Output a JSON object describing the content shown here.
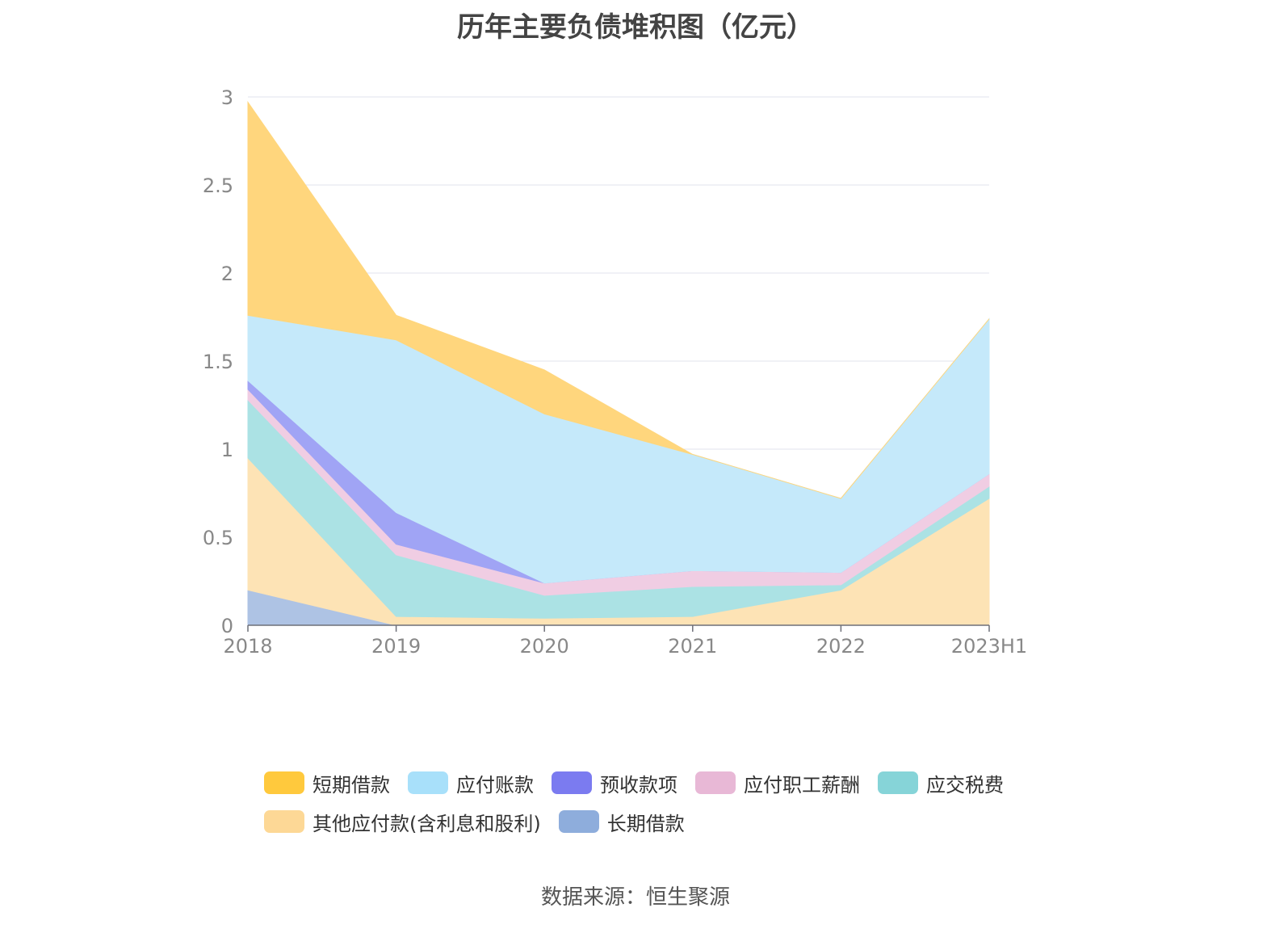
{
  "source_text": "数据来源：恒生聚源",
  "colors": {
    "grid": "#e0e3ee",
    "axis": "#6e7079",
    "tick_label": "#888888"
  },
  "chart_data": {
    "type": "area",
    "stacked": true,
    "title": "历年主要负债堆积图（亿元）",
    "xlabel": "",
    "ylabel": "",
    "categories": [
      "2018",
      "2019",
      "2020",
      "2021",
      "2022",
      "2023H1"
    ],
    "ylim": [
      0,
      3
    ],
    "yticks": [
      "0",
      "0.5",
      "1",
      "1.5",
      "2",
      "2.5",
      "3"
    ],
    "ytick_values": [
      0,
      0.5,
      1,
      1.5,
      2,
      2.5,
      3
    ],
    "grid": true,
    "legend_position": "bottom",
    "series": [
      {
        "name": "长期借款",
        "legend_color": "#8eaddc",
        "fill": "#aec3e4",
        "values": [
          0.2,
          0.0,
          0.0,
          0.0,
          0.0,
          0.0
        ]
      },
      {
        "name": "其他应付款(含利息和股利)",
        "legend_color": "#fdd896",
        "fill": "#fde3b5",
        "values": [
          0.75,
          0.05,
          0.04,
          0.05,
          0.2,
          0.72
        ]
      },
      {
        "name": "应交税费",
        "legend_color": "#86d4d8",
        "fill": "#abe2e4",
        "values": [
          0.33,
          0.35,
          0.13,
          0.17,
          0.03,
          0.07
        ]
      },
      {
        "name": "应付职工薪酬",
        "legend_color": "#e8b8d6",
        "fill": "#f0cde3",
        "values": [
          0.06,
          0.06,
          0.07,
          0.09,
          0.07,
          0.07
        ]
      },
      {
        "name": "预收款项",
        "legend_color": "#7b7bf0",
        "fill": "#a0a4f5",
        "values": [
          0.05,
          0.18,
          0.0,
          0.0,
          0.0,
          0.0
        ]
      },
      {
        "name": "应付账款",
        "legend_color": "#a8e0fa",
        "fill": "#c5e9fa",
        "values": [
          0.37,
          0.98,
          0.96,
          0.66,
          0.42,
          0.88
        ]
      },
      {
        "name": "短期借款",
        "legend_color": "#ffc93d",
        "fill": "#ffd67d",
        "values": [
          1.21,
          0.14,
          0.25,
          0.0,
          0.0,
          0.0
        ]
      }
    ],
    "legend_order": [
      "短期借款",
      "应付账款",
      "预收款项",
      "应付职工薪酬",
      "应交税费",
      "其他应付款(含利息和股利)",
      "长期借款"
    ]
  }
}
